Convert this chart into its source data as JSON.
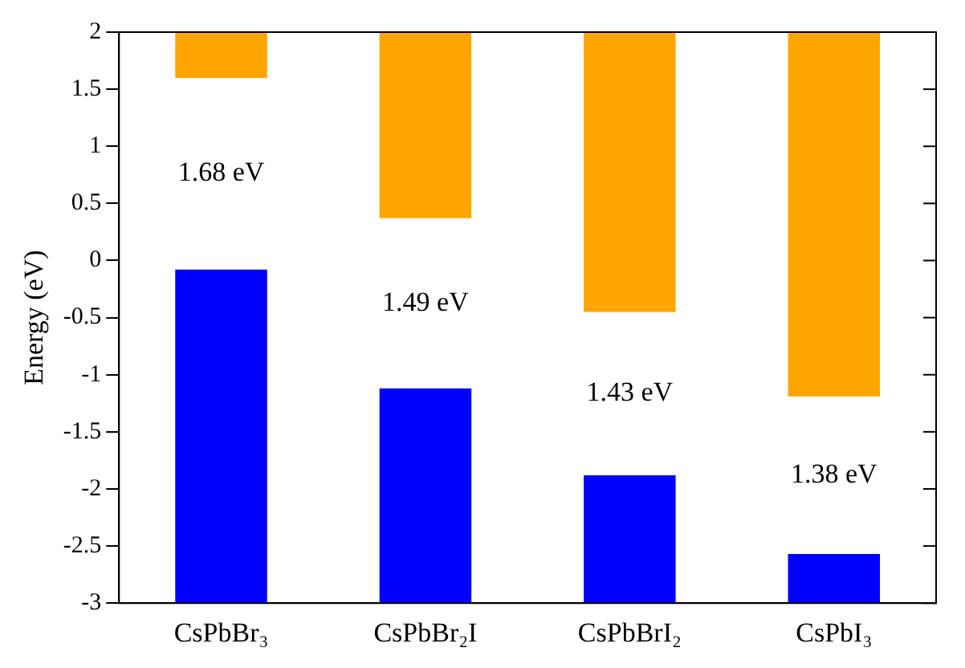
{
  "chart_data": {
    "type": "bar",
    "ylabel": "Energy (eV)",
    "categories": [
      "CsPbBr₃",
      "CsPbBr₂I",
      "CsPbBrI₂",
      "CsPbI₃"
    ],
    "series": [
      {
        "color": "#0000ff",
        "values": [
          2.92,
          1.88,
          1.12,
          0.43
        ],
        "base": [
          -3,
          -3,
          -3,
          -3
        ]
      },
      {
        "color": "#ffa500",
        "values": [
          0.4,
          1.63,
          2.45,
          3.19
        ],
        "base": [
          1.6,
          0.37,
          -0.45,
          -1.19
        ]
      }
    ],
    "ylim": [
      -3,
      2
    ],
    "yticks": [
      -3,
      -2.5,
      -2,
      -1.5,
      -1,
      -0.5,
      0,
      0.5,
      1,
      1.5,
      2
    ],
    "annotations": [
      "1.68 eV",
      "1.49 eV",
      "1.43 eV",
      "1.38 eV"
    ],
    "grid": false,
    "legend": false
  }
}
